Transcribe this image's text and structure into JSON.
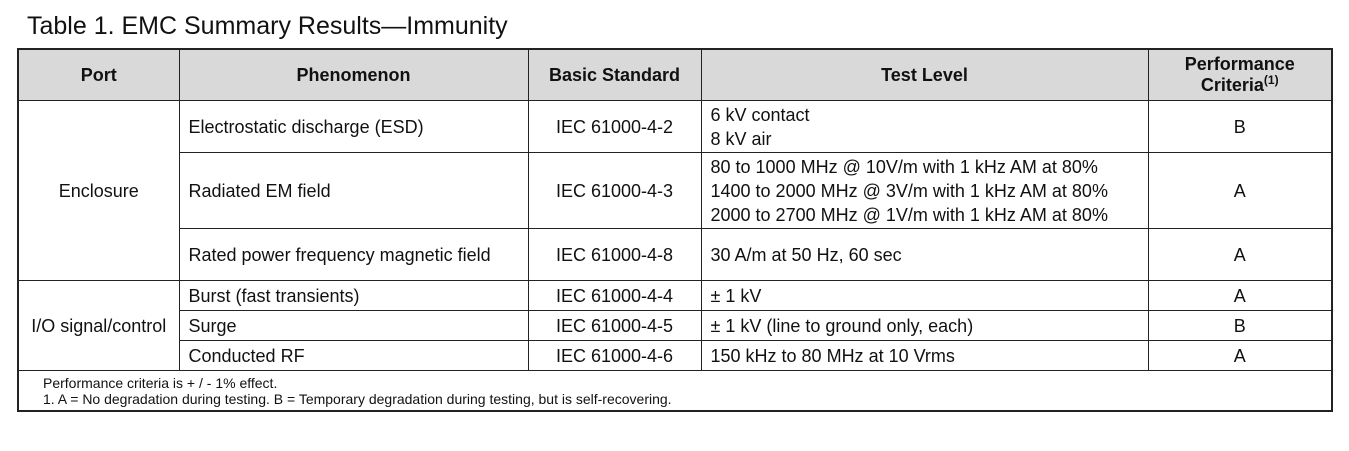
{
  "title": "Table 1. EMC Summary Results—Immunity",
  "table": {
    "headers": [
      "Port",
      "Phenomenon",
      "Basic Standard",
      "Test Level",
      {
        "text": "Performance Criteria",
        "sup": "(1)"
      }
    ],
    "groups": [
      {
        "port": "Enclosure",
        "rows": [
          {
            "phenomenon": "Electrostatic discharge (ESD)",
            "standard": "IEC 61000-4-2",
            "test_level": [
              "6 kV contact",
              "8 kV air"
            ],
            "criteria": "B"
          },
          {
            "phenomenon": "Radiated EM field",
            "standard": "IEC 61000-4-3",
            "test_level": [
              "80 to 1000 MHz @ 10V/m with 1 kHz AM at 80%",
              "1400 to 2000 MHz @ 3V/m with 1 kHz AM at 80%",
              "2000 to 2700 MHz @ 1V/m with 1 kHz AM at 80%"
            ],
            "criteria": "A"
          },
          {
            "phenomenon": "Rated power frequency magnetic field",
            "standard": "IEC 61000-4-8",
            "test_level": [
              "30 A/m at 50 Hz, 60 sec"
            ],
            "criteria": "A"
          }
        ]
      },
      {
        "port": "I/O signal/control",
        "rows": [
          {
            "phenomenon": "Burst (fast transients)",
            "standard": "IEC 61000-4-4",
            "test_level": [
              "± 1 kV"
            ],
            "criteria": "A"
          },
          {
            "phenomenon": "Surge",
            "standard": "IEC 61000-4-5",
            "test_level": [
              "± 1 kV (line to ground only, each)"
            ],
            "criteria": "B"
          },
          {
            "phenomenon": "Conducted RF",
            "standard": "IEC 61000-4-6",
            "test_level": [
              "150 kHz to 80 MHz at 10 Vrms"
            ],
            "criteria": "A"
          }
        ]
      }
    ]
  },
  "footnotes": [
    "Performance criteria is + / - 1% effect.",
    "1. A = No degradation during testing. B = Temporary degradation during testing, but is self-recovering."
  ]
}
